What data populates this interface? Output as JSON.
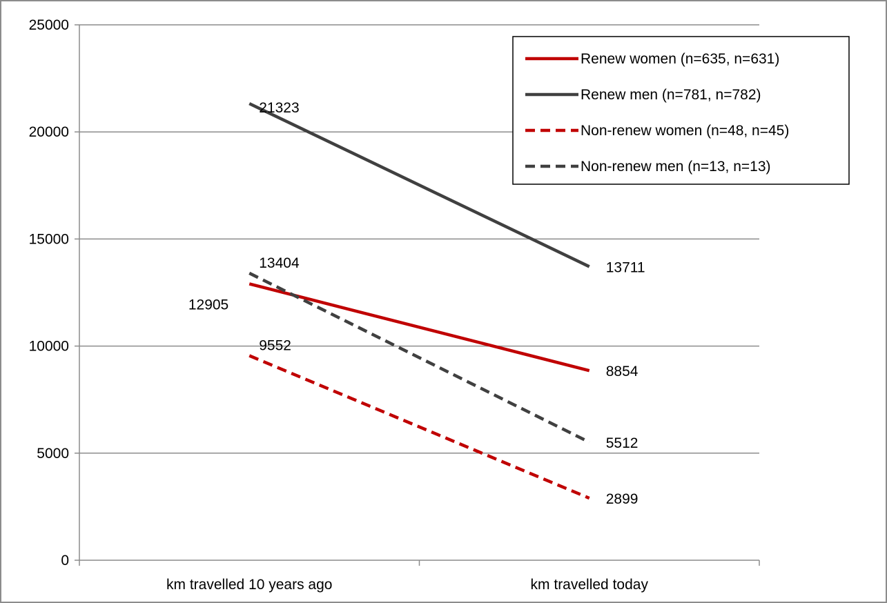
{
  "chart_data": {
    "type": "line",
    "categories": [
      "km travelled 10 years ago",
      "km travelled today"
    ],
    "ylim": [
      0,
      25000
    ],
    "yticks": [
      0,
      5000,
      10000,
      15000,
      20000,
      25000
    ],
    "grid": true,
    "legend_position": "top-right",
    "series": [
      {
        "name": "Renew women (n=635, n=631)",
        "values": [
          12905,
          8854
        ],
        "color": "#c00000",
        "dashed": false
      },
      {
        "name": "Renew men (n=781, n=782)",
        "values": [
          21323,
          13711
        ],
        "color": "#404040",
        "dashed": false
      },
      {
        "name": "Non-renew women (n=48, n=45)",
        "values": [
          9552,
          2899
        ],
        "color": "#c00000",
        "dashed": true
      },
      {
        "name": "Non-renew men (n=13, n=13)",
        "values": [
          13404,
          5512
        ],
        "color": "#404040",
        "dashed": true
      }
    ]
  }
}
